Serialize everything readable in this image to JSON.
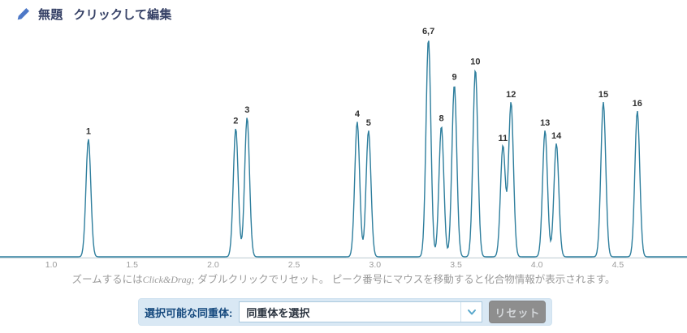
{
  "header": {
    "title": "無題",
    "edit_hint": "クリックして編集",
    "pencil_icon": "pencil-edit",
    "title_color": "#364166",
    "pencil_color": "#4d78c7"
  },
  "help": {
    "pre": "ズームするには",
    "em": "Click&Drag;",
    "post": " ダブルクリックでリセット。 ピーク番号にマウスを移動すると化合物情報が表示されます。"
  },
  "controls": {
    "label": "選択可能な同重体:",
    "selected_value": "同重体を選択",
    "chevron_icon": "chevron-down",
    "reset_label": "リセット",
    "bar_color": "#d9e8f4",
    "label_color": "#15497e",
    "reset_bg_color": "#8e8e8e"
  },
  "chart_data": {
    "type": "line",
    "title": "",
    "xlabel": "",
    "ylabel": "",
    "grid": false,
    "legend": false,
    "xlim": [
      0.68,
      4.93
    ],
    "ylim": [
      0,
      1.1
    ],
    "x_ticks": [
      "1.0",
      "1.5",
      "2.0",
      "2.5",
      "3.0",
      "3.5",
      "4.0",
      "4.5"
    ],
    "line_color": "#2e7e9d",
    "axis_color": "#bccad1",
    "tick_label_color": "#9b9b9b",
    "peak_label_color": "#333333",
    "peak_sigma": 0.015,
    "peaks": [
      {
        "label": "1",
        "x": 1.23,
        "intensity": 0.54
      },
      {
        "label": "2",
        "x": 2.14,
        "intensity": 0.59
      },
      {
        "label": "3",
        "x": 2.21,
        "intensity": 0.64
      },
      {
        "label": "4",
        "x": 2.89,
        "intensity": 0.62
      },
      {
        "label": "5",
        "x": 2.96,
        "intensity": 0.58
      },
      {
        "label": "6,7",
        "x": 3.33,
        "intensity": 1.0
      },
      {
        "label": "8",
        "x": 3.41,
        "intensity": 0.6
      },
      {
        "label": "9",
        "x": 3.49,
        "intensity": 0.79
      },
      {
        "label": "10",
        "x": 3.62,
        "intensity": 0.86
      },
      {
        "label": "11",
        "x": 3.79,
        "intensity": 0.51
      },
      {
        "label": "12",
        "x": 3.84,
        "intensity": 0.71
      },
      {
        "label": "13",
        "x": 4.05,
        "intensity": 0.58
      },
      {
        "label": "14",
        "x": 4.12,
        "intensity": 0.52
      },
      {
        "label": "15",
        "x": 4.41,
        "intensity": 0.71
      },
      {
        "label": "16",
        "x": 4.62,
        "intensity": 0.67
      }
    ]
  }
}
